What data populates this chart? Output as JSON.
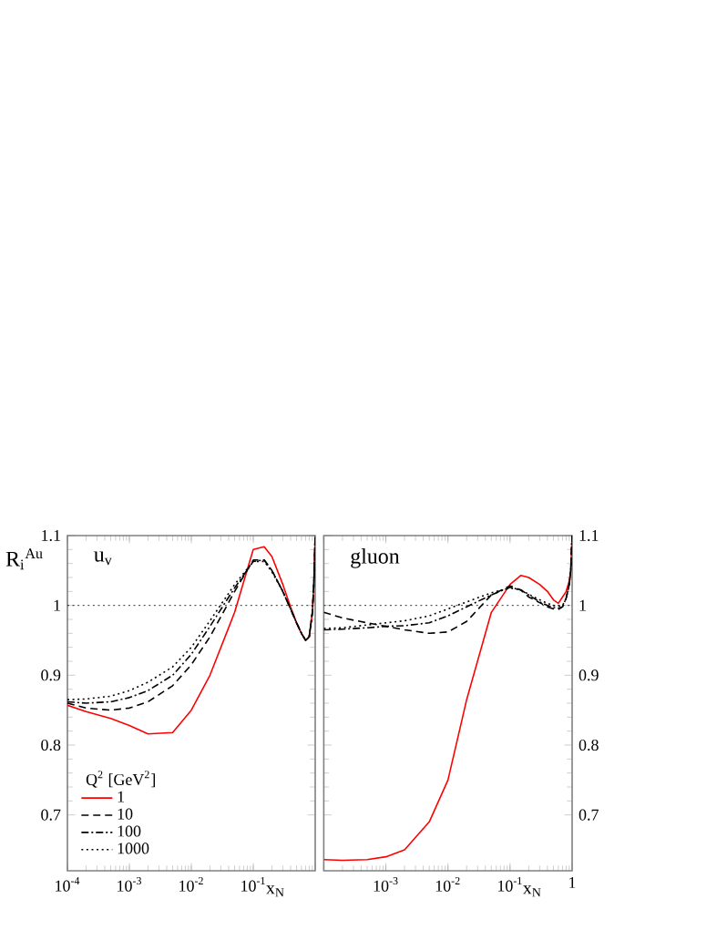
{
  "chart_data": [
    {
      "type": "line",
      "title": "u$_{v}$",
      "ylabel": "R$_{i}$$^{Au}$",
      "xlabel": "x$_{N}$",
      "log": "x",
      "legend": "bottom left",
      "legend_title": "Q$^{2}$ [GeV$^{2}$]",
      "x": [
        0.0001,
        0.0002,
        0.0005,
        0.001,
        0.002,
        0.005,
        0.01,
        0.02,
        0.05,
        0.1,
        0.15,
        0.2,
        0.3,
        0.4,
        0.5,
        0.6,
        0.7,
        0.8,
        0.9,
        0.95,
        1
      ],
      "xlim": [
        0.0001,
        1
      ],
      "xticks": [
        {
          "value": 0.0001,
          "label": "10$^{-4}$"
        },
        {
          "value": 0.001,
          "label": "10$^{-3}$"
        },
        {
          "value": 0.01,
          "label": "10$^{-2}$"
        },
        {
          "value": 0.1,
          "label": "10$^{-1}$"
        },
        {
          "value": 1,
          "label": null
        }
      ],
      "ylim": [
        0.62,
        1.1
      ],
      "yticks": [
        0.7,
        0.8,
        0.9,
        1,
        1.1
      ],
      "ref_lines": [
        {
          "axis": "y",
          "value": 1,
          "line_style": "dotted"
        }
      ],
      "series": [
        {
          "name": "1",
          "color": "#ff0000",
          "line_style": "solid",
          "values": [
            0.857,
            0.848,
            0.838,
            0.828,
            0.816,
            0.818,
            0.85,
            0.9,
            0.99,
            1.08,
            1.084,
            1.07,
            1.03,
            0.998,
            0.975,
            0.96,
            0.95,
            0.955,
            0.99,
            1.03,
            1.1
          ]
        },
        {
          "name": "10",
          "color": "#000000",
          "line_style": "dashed",
          "values": [
            0.86,
            0.853,
            0.85,
            0.853,
            0.862,
            0.885,
            0.915,
            0.955,
            1.02,
            1.065,
            1.065,
            1.05,
            1.02,
            0.995,
            0.975,
            0.96,
            0.95,
            0.955,
            0.99,
            1.03,
            1.1
          ]
        },
        {
          "name": "100",
          "color": "#000000",
          "line_style": "dashdot",
          "values": [
            0.862,
            0.86,
            0.862,
            0.868,
            0.878,
            0.9,
            0.93,
            0.97,
            1.025,
            1.063,
            1.065,
            1.05,
            1.02,
            0.995,
            0.975,
            0.96,
            0.95,
            0.955,
            0.99,
            1.03,
            1.1
          ]
        },
        {
          "name": "1000",
          "color": "#000000",
          "line_style": "dotted",
          "values": [
            0.865,
            0.866,
            0.87,
            0.878,
            0.89,
            0.912,
            0.94,
            0.978,
            1.03,
            1.063,
            1.063,
            1.048,
            1.02,
            0.995,
            0.975,
            0.96,
            0.95,
            0.955,
            0.99,
            1.03,
            1.1
          ]
        }
      ]
    },
    {
      "type": "line",
      "title": "gluon",
      "xlabel": "x$_{N}$",
      "log": "x",
      "legend": false,
      "x": [
        0.0001,
        0.0002,
        0.0005,
        0.001,
        0.002,
        0.005,
        0.01,
        0.02,
        0.05,
        0.1,
        0.15,
        0.2,
        0.3,
        0.4,
        0.5,
        0.6,
        0.7,
        0.8,
        0.9,
        0.95,
        1
      ],
      "xlim": [
        0.0001,
        1
      ],
      "xticks": [
        {
          "value": 0.0001,
          "label": null
        },
        {
          "value": 0.001,
          "label": "10$^{-3}$"
        },
        {
          "value": 0.01,
          "label": "10$^{-2}$"
        },
        {
          "value": 0.1,
          "label": "10$^{-1}$"
        },
        1
      ],
      "ylim": [
        0.62,
        1.1
      ],
      "yticks": [
        0.7,
        0.8,
        0.9,
        1,
        1.1
      ],
      "ref_lines": [
        {
          "axis": "y",
          "value": 1,
          "line_style": "dotted"
        }
      ],
      "series": [
        {
          "color": "#ff0000",
          "line_style": "solid",
          "values": [
            0.636,
            0.635,
            0.636,
            0.64,
            0.65,
            0.69,
            0.75,
            0.865,
            0.99,
            1.03,
            1.043,
            1.04,
            1.03,
            1.02,
            1.008,
            1.003,
            1.012,
            1.02,
            1.035,
            1.05,
            1.1
          ]
        },
        {
          "color": "#000000",
          "line_style": "dashed",
          "values": [
            0.99,
            0.982,
            0.975,
            0.97,
            0.965,
            0.96,
            0.962,
            0.977,
            1.015,
            1.028,
            1.022,
            1.012,
            1.004,
            0.998,
            0.995,
            0.994,
            0.998,
            1.01,
            1.03,
            1.05,
            1.1
          ]
        },
        {
          "color": "#000000",
          "line_style": "dashdot",
          "values": [
            0.965,
            0.966,
            0.968,
            0.97,
            0.971,
            0.975,
            0.985,
            0.998,
            1.015,
            1.026,
            1.022,
            1.015,
            1.005,
            1.0,
            0.997,
            0.996,
            0.998,
            1.01,
            1.03,
            1.05,
            1.1
          ]
        },
        {
          "color": "#000000",
          "line_style": "dotted",
          "values": [
            0.967,
            0.968,
            0.972,
            0.975,
            0.978,
            0.985,
            0.995,
            1.005,
            1.018,
            1.025,
            1.022,
            1.016,
            1.008,
            1.003,
            1.0,
            0.999,
            1.0,
            1.01,
            1.03,
            1.05,
            1.1
          ]
        }
      ]
    }
  ]
}
